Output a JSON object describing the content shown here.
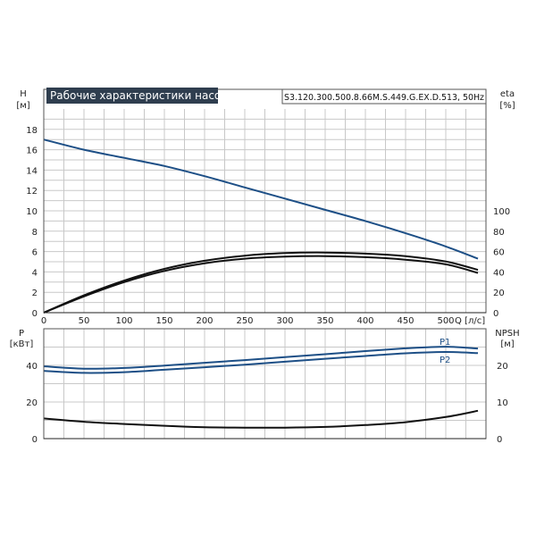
{
  "title": "Рабочие характеристики насоса",
  "model": "S3.120.300.500.8.66M.S.449.G.EX.D.513, 50Hz",
  "chart_data": [
    {
      "type": "line",
      "panel": "top",
      "title": "Рабочие характеристики насоса",
      "xlabel": "Q [л/с]",
      "ylabel_left": "H [м]",
      "ylabel_right": "eta [%]",
      "xlim": [
        0,
        550
      ],
      "ylim_left": [
        0,
        20
      ],
      "ylim_right": [
        0,
        150
      ],
      "x_ticks": [
        0,
        50,
        100,
        150,
        200,
        250,
        300,
        350,
        400,
        450,
        500
      ],
      "x_tick_labels": [
        "0",
        "50",
        "100",
        "150",
        "200",
        "250",
        "300",
        "350",
        "400",
        "450",
        "500"
      ],
      "y_ticks_left": [
        0,
        2,
        4,
        6,
        8,
        10,
        12,
        14,
        16,
        18
      ],
      "y_tick_labels_left": [
        "0",
        "2",
        "4",
        "6",
        "8",
        "10",
        "12",
        "14",
        "16",
        "18"
      ],
      "y_ticks_right": [
        0,
        20,
        40,
        60,
        80,
        100
      ],
      "y_tick_labels_right": [
        "0",
        "20",
        "40",
        "60",
        "80",
        "100"
      ],
      "grid": true,
      "series": [
        {
          "axis": "left",
          "color": "#1d4f86",
          "x": [
            0,
            50,
            100,
            150,
            200,
            250,
            300,
            350,
            400,
            450,
            500,
            540
          ],
          "y": [
            17.0,
            16.0,
            15.2,
            14.4,
            13.4,
            12.3,
            11.2,
            10.1,
            9.0,
            7.8,
            6.5,
            5.3
          ]
        },
        {
          "axis": "right",
          "color": "#111111",
          "x": [
            0,
            50,
            100,
            150,
            200,
            250,
            300,
            350,
            400,
            450,
            500,
            540
          ],
          "y": [
            0,
            17,
            31.5,
            43,
            51,
            56,
            58.5,
            59,
            58,
            55.5,
            50.3,
            42
          ]
        },
        {
          "axis": "right",
          "color": "#111111",
          "x": [
            0,
            50,
            100,
            150,
            200,
            250,
            300,
            350,
            400,
            450,
            500,
            540
          ],
          "y": [
            0,
            16,
            30,
            41,
            48.5,
            53,
            55,
            55.5,
            54.5,
            52,
            47.5,
            39
          ]
        }
      ]
    },
    {
      "type": "line",
      "panel": "bottom",
      "xlabel": "",
      "ylabel_left": "P [кВт]",
      "ylabel_right": "NPSH [м]",
      "xlim": [
        0,
        550
      ],
      "ylim_left": [
        0,
        60
      ],
      "ylim_right": [
        0,
        30
      ],
      "y_ticks_left": [
        0,
        20,
        40
      ],
      "y_tick_labels_left": [
        "0",
        "20",
        "40"
      ],
      "y_ticks_right": [
        0,
        10,
        20
      ],
      "y_tick_labels_right": [
        "0",
        "10",
        "20"
      ],
      "grid": true,
      "series": [
        {
          "name": "P1",
          "axis": "left",
          "color": "#1d4f86",
          "x": [
            0,
            50,
            100,
            150,
            200,
            250,
            300,
            350,
            400,
            450,
            500,
            540
          ],
          "y": [
            39.5,
            38.2,
            38.6,
            39.9,
            41.4,
            42.9,
            44.5,
            46.1,
            47.8,
            49.3,
            50.2,
            49.2
          ]
        },
        {
          "name": "P2",
          "axis": "left",
          "color": "#1d4f86",
          "x": [
            0,
            50,
            100,
            150,
            200,
            250,
            300,
            350,
            400,
            450,
            500,
            540
          ],
          "y": [
            37.0,
            35.9,
            36.3,
            37.6,
            39.0,
            40.4,
            42.0,
            43.6,
            45.1,
            46.6,
            47.3,
            46.7
          ]
        },
        {
          "axis": "right",
          "color": "#111111",
          "x": [
            0,
            50,
            100,
            150,
            200,
            250,
            300,
            350,
            400,
            450,
            500,
            540
          ],
          "y": [
            5.5,
            4.6,
            4.0,
            3.5,
            3.1,
            3.0,
            3.0,
            3.2,
            3.7,
            4.5,
            5.9,
            7.6
          ]
        }
      ]
    }
  ]
}
